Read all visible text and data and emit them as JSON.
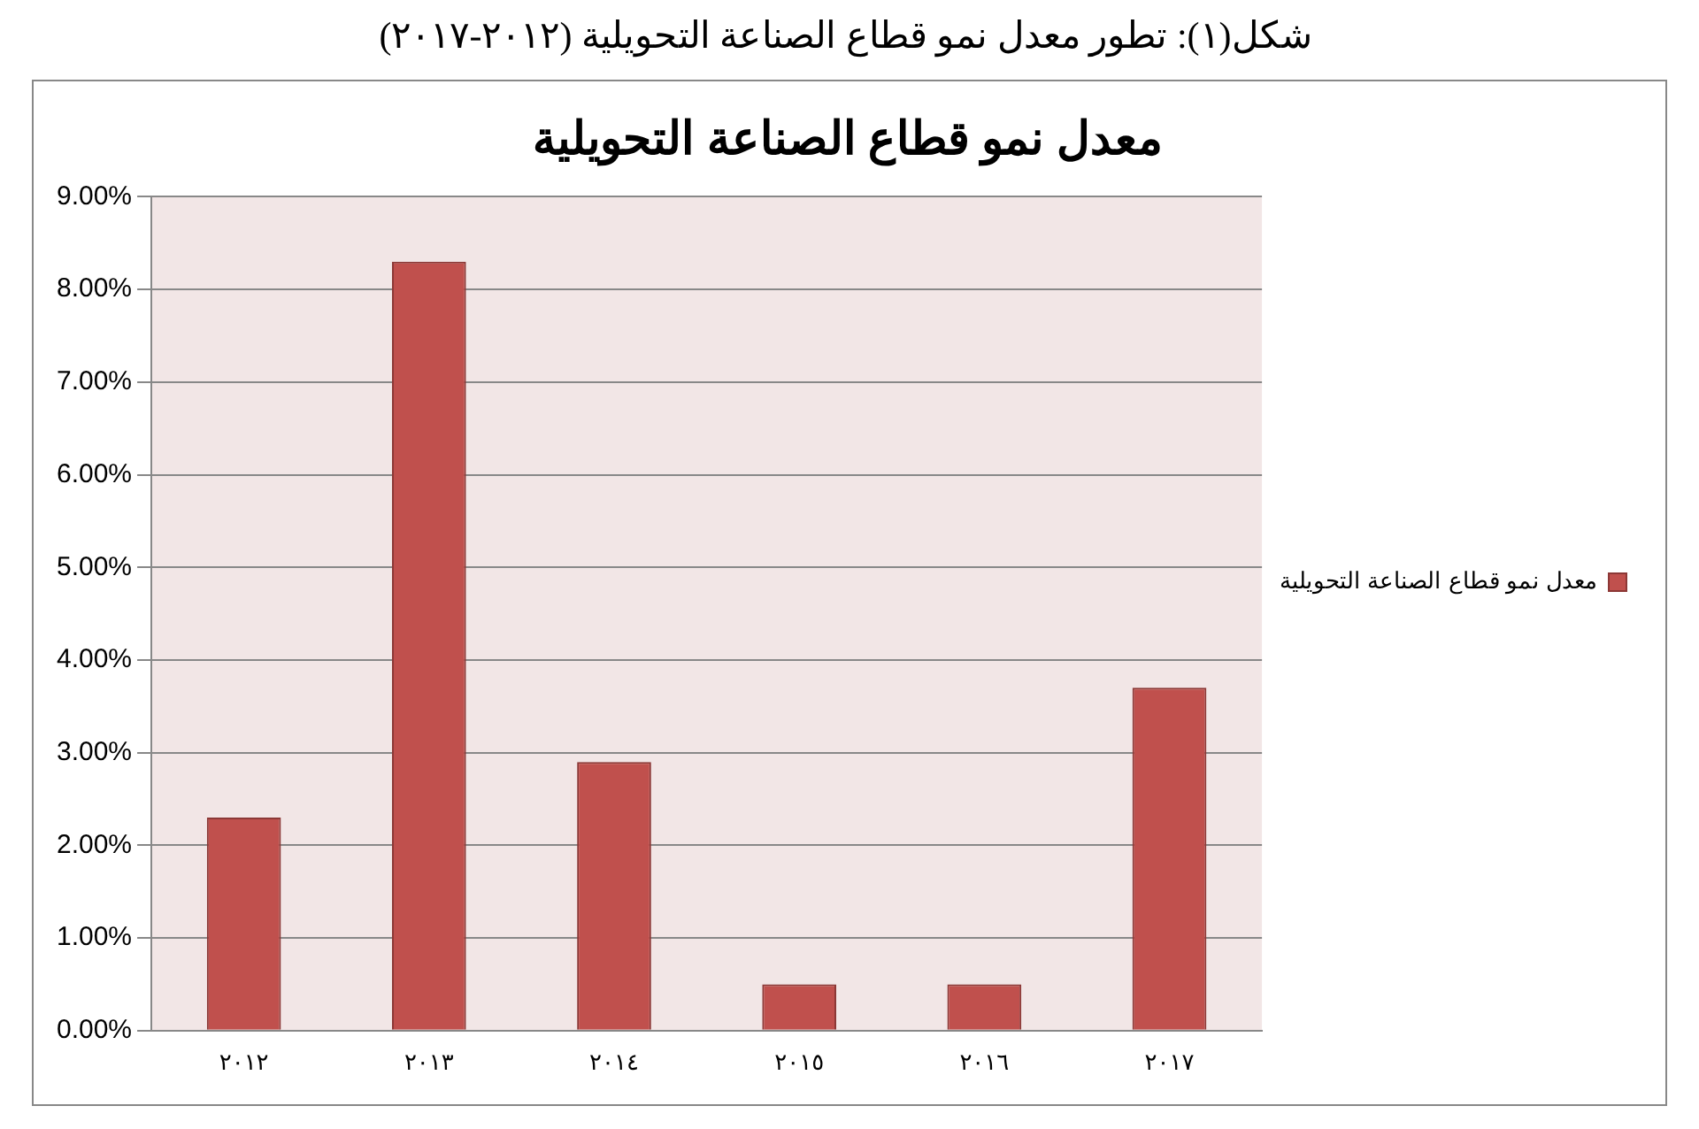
{
  "chart_data": {
    "type": "bar",
    "title": "معدل نمو قطاع الصناعة التحويلية",
    "annotations": [
      "شكل(١): تطور معدل نمو قطاع الصناعة التحويلية (٢٠١٢-٢٠١٧)"
    ],
    "categories": [
      "٢٠١٢",
      "٢٠١٣",
      "٢٠١٤",
      "٢٠١٥",
      "٢٠١٦",
      "٢٠١٧"
    ],
    "series": [
      {
        "name": "معدل نمو قطاع الصناعة التحويلية",
        "color": "#c0504d",
        "values": [
          2.3,
          8.3,
          2.9,
          0.5,
          0.5,
          3.7
        ]
      }
    ],
    "ylim": [
      0,
      9
    ],
    "yticks": [
      {
        "value": 0,
        "label": "0.00%"
      },
      {
        "value": 1,
        "label": "1.00%"
      },
      {
        "value": 2,
        "label": "2.00%"
      },
      {
        "value": 3,
        "label": "3.00%"
      },
      {
        "value": 4,
        "label": "4.00%"
      },
      {
        "value": 5,
        "label": "5.00%"
      },
      {
        "value": 6,
        "label": "6.00%"
      },
      {
        "value": 7,
        "label": "7.00%"
      },
      {
        "value": 8,
        "label": "8.00%"
      },
      {
        "value": 9,
        "label": "9.00%"
      }
    ],
    "grid": "y",
    "legend": "right"
  }
}
